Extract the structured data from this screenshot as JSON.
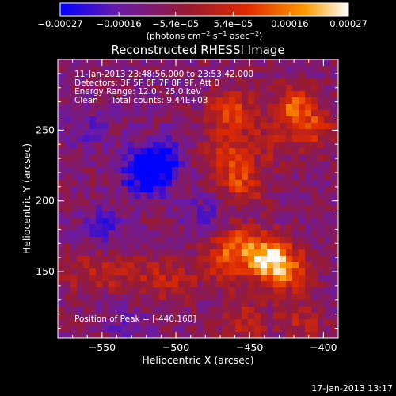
{
  "chart_data": {
    "type": "heatmap",
    "title": "Reconstructed RHESSI Image",
    "xlabel": "Heliocentric X (arcsec)",
    "ylabel": "Heliocentric Y (arcsec)",
    "xlim": [
      -580,
      -390
    ],
    "ylim": [
      103,
      300
    ],
    "x_ticks": [
      -550,
      -500,
      -450,
      -400
    ],
    "x_tick_labels": [
      "−550",
      "−500",
      "−450",
      "−400"
    ],
    "y_ticks": [
      150,
      200,
      250
    ],
    "y_tick_labels": [
      "150",
      "200",
      "250"
    ],
    "colorbar": {
      "range": [
        -0.00027,
        0.00027
      ],
      "ticks": [
        -0.00027,
        -0.00016,
        -5.4e-05,
        5.4e-05,
        0.00016,
        0.00027
      ],
      "tick_labels": [
        "−0.00027",
        "−0.00016",
        "−5.4e−05",
        "5.4e−05",
        "0.00016",
        "0.00027"
      ],
      "units_label": "(photons cm",
      "units_sup1": "−2",
      "units_mid": " s",
      "units_sup2": "−1",
      "units_end": " asec",
      "units_sup3": "−2",
      "units_close": ")",
      "colors": [
        "#0000ff",
        "#6a1aa8",
        "#9a1a30",
        "#e02a00",
        "#ff9a00",
        "#ffffff"
      ]
    },
    "annotations": {
      "time_range": "11-Jan-2013 23:48:56.000 to 23:53:42.000",
      "detectors": "Detectors: 3F 5F 6F 7F 8F 9F, Att 0",
      "energy_range": "Energy Range: 12.0 - 25.0 keV",
      "method": "Clean     Total counts: 9.44E+03",
      "peak": "Position of Peak = [-440,160]"
    },
    "features": [
      {
        "x": -440,
        "y": 160,
        "value": 0.00027
      },
      {
        "x": -425,
        "y": 152,
        "value": 0.0002
      },
      {
        "x": -460,
        "y": 168,
        "value": 0.00016
      },
      {
        "x": -420,
        "y": 265,
        "value": 0.0002
      },
      {
        "x": -405,
        "y": 250,
        "value": 0.00012
      },
      {
        "x": -462,
        "y": 262,
        "value": 0.00018
      },
      {
        "x": -468,
        "y": 233,
        "value": 0.00014
      },
      {
        "x": -455,
        "y": 212,
        "value": 0.00016
      },
      {
        "x": -435,
        "y": 240,
        "value": 8e-05
      },
      {
        "x": -545,
        "y": 150,
        "value": 0.0001
      },
      {
        "x": -520,
        "y": 145,
        "value": 8e-05
      },
      {
        "x": -500,
        "y": 143,
        "value": 9e-05
      },
      {
        "x": -565,
        "y": 148,
        "value": 7e-05
      },
      {
        "x": -470,
        "y": 155,
        "value": 0.0001
      },
      {
        "x": -455,
        "y": 115,
        "value": 0.00012
      },
      {
        "x": -415,
        "y": 115,
        "value": 0.0001
      },
      {
        "x": -520,
        "y": 220,
        "value": -0.00022
      },
      {
        "x": -510,
        "y": 230,
        "value": -0.00014
      },
      {
        "x": -550,
        "y": 180,
        "value": -0.0001
      },
      {
        "x": -480,
        "y": 190,
        "value": -8e-05
      },
      {
        "x": -560,
        "y": 250,
        "value": -6e-05
      },
      {
        "x": -535,
        "y": 115,
        "value": -6e-05
      }
    ]
  },
  "footer": {
    "date": "17-Jan-2013 13:17"
  }
}
